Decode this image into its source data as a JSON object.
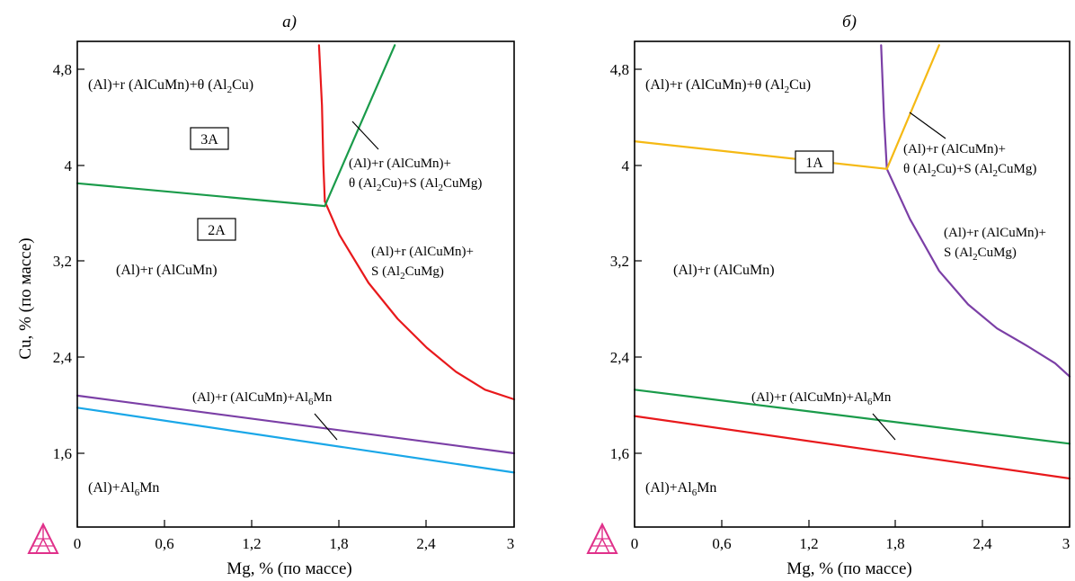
{
  "figure": {
    "y_axis_label": "Cu, % (по массе)",
    "x_axis_label": "Mg, % (по массе)",
    "x_ticks": [
      "0",
      "0,6",
      "1,2",
      "1,8",
      "2,4",
      "3"
    ],
    "y_ticks": [
      "1,6",
      "2,4",
      "3,2",
      "4",
      "4,8"
    ],
    "logo_icon": "thermocalc-triangle-icon"
  },
  "panel_a": {
    "title": "а)",
    "labels": {
      "top": "(Al)+r (AlCuMn)+θ (Al",
      "top_sub": "2",
      "top_end": "Cu)",
      "box3": "3A",
      "box2": "2A",
      "right1": "(Al)+r (AlCuMn)+",
      "right2a": "θ (Al",
      "right2b": "2",
      "right2c": "Cu)+S (Al",
      "right2d": "2",
      "right2e": "CuMg)",
      "mid1": "(Al)+r (AlCuMn)+",
      "mid2a": "S (Al",
      "mid2b": "2",
      "mid2c": "CuMg)",
      "center": "(Al)+r (AlCuMn)",
      "low_a": "(Al)+r (AlCuMn)+Al",
      "low_b": "6",
      "low_c": "Mn",
      "bottom_a": "(Al)+Al",
      "bottom_b": "6",
      "bottom_c": "Mn"
    }
  },
  "panel_b": {
    "title": "б)",
    "labels": {
      "top": "(Al)+r (AlCuMn)+θ (Al",
      "top_sub": "2",
      "top_end": "Cu)",
      "box1": "1A",
      "right1": "(Al)+r (AlCuMn)+",
      "right2a": "θ (Al",
      "right2b": "2",
      "right2c": "Cu)+S (Al",
      "right2d": "2",
      "right2e": "CuMg)",
      "mid1": "(Al)+r (AlCuMn)+",
      "mid2a": "S (Al",
      "mid2b": "2",
      "mid2c": "CuMg)",
      "center": "(Al)+r (AlCuMn)",
      "low_a": "(Al)+r (AlCuMn)+Al",
      "low_b": "6",
      "low_c": "Mn",
      "bottom_a": "(Al)+Al",
      "bottom_b": "6",
      "bottom_c": "Mn"
    }
  },
  "chart_data": [
    {
      "type": "line",
      "title": "а)",
      "xlabel": "Mg, % (по массе)",
      "ylabel": "Cu, % (по массе)",
      "xlim": [
        0,
        3
      ],
      "ylim": [
        1.2,
        5.0
      ],
      "series": [
        {
          "color": "#e8191c",
          "x": [
            1.66,
            1.68,
            1.69,
            1.7
          ],
          "y": [
            5.0,
            4.5,
            4.0,
            3.7
          ]
        },
        {
          "color": "#e8191c",
          "x": [
            1.7,
            1.8,
            2.0,
            2.2,
            2.4,
            2.6,
            2.8,
            3.0
          ],
          "y": [
            3.7,
            3.42,
            3.02,
            2.72,
            2.48,
            2.28,
            2.13,
            2.05
          ]
        },
        {
          "color": "#1a9b4a",
          "x": [
            0,
            1.7
          ],
          "y": [
            3.85,
            3.66
          ]
        },
        {
          "color": "#1a9b4a",
          "x": [
            1.7,
            2.18
          ],
          "y": [
            3.66,
            5.0
          ]
        },
        {
          "color": "#7b3fa6",
          "x": [
            0,
            3.0
          ],
          "y": [
            2.08,
            1.6
          ]
        },
        {
          "color": "#1aa7e8",
          "x": [
            0,
            3.0
          ],
          "y": [
            1.98,
            1.44
          ]
        }
      ]
    },
    {
      "type": "line",
      "title": "б)",
      "xlabel": "Mg, % (по массе)",
      "ylabel": "Cu, % (по массе)",
      "xlim": [
        0,
        3
      ],
      "ylim": [
        1.2,
        5.0
      ],
      "series": [
        {
          "color": "#7b3fa6",
          "x": [
            1.7,
            1.72,
            1.74
          ],
          "y": [
            5.0,
            4.4,
            3.97
          ]
        },
        {
          "color": "#7b3fa6",
          "x": [
            1.74,
            1.9,
            2.1,
            2.3,
            2.5,
            2.7,
            2.9,
            3.0
          ],
          "y": [
            3.97,
            3.55,
            3.12,
            2.84,
            2.64,
            2.5,
            2.35,
            2.24
          ]
        },
        {
          "color": "#f5b914",
          "x": [
            0,
            1.74
          ],
          "y": [
            4.2,
            3.97
          ]
        },
        {
          "color": "#f5b914",
          "x": [
            1.74,
            2.1
          ],
          "y": [
            3.97,
            5.0
          ]
        },
        {
          "color": "#1a9b4a",
          "x": [
            0,
            3.0
          ],
          "y": [
            2.13,
            1.68
          ]
        },
        {
          "color": "#e8191c",
          "x": [
            0,
            3.0
          ],
          "y": [
            1.91,
            1.39
          ]
        }
      ]
    }
  ]
}
